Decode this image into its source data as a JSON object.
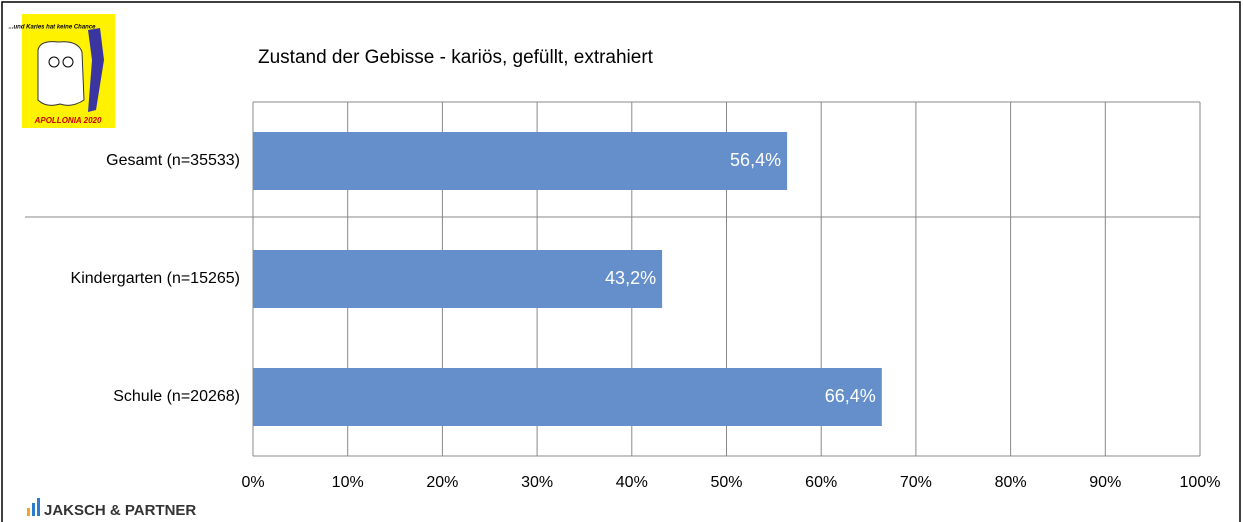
{
  "logo": {
    "text": "...und Karies hat keine Chance",
    "caption": "APOLLONIA 2020"
  },
  "footer": "JAKSCH & PARTNER",
  "chart_data": {
    "type": "bar",
    "orientation": "horizontal",
    "title": "Zustand der Gebisse - kariös, gefüllt, extrahiert",
    "categories": [
      "Gesamt (n=35533)",
      "Kindergarten (n=15265)",
      "Schule (n=20268)"
    ],
    "values": [
      56.4,
      43.2,
      66.4
    ],
    "value_labels": [
      "56,4%",
      "43,2%",
      "66,4%"
    ],
    "color": "#658fcb",
    "xlim": [
      0,
      100
    ],
    "xticks": [
      {
        "value": 0,
        "label": "0%"
      },
      {
        "value": 10,
        "label": "10%"
      },
      {
        "value": 20,
        "label": "20%"
      },
      {
        "value": 30,
        "label": "30%"
      },
      {
        "value": 40,
        "label": "40%"
      },
      {
        "value": 50,
        "label": "50%"
      },
      {
        "value": 60,
        "label": "60%"
      },
      {
        "value": 70,
        "label": "70%"
      },
      {
        "value": 80,
        "label": "80%"
      },
      {
        "value": 90,
        "label": "90%"
      },
      {
        "value": 100,
        "label": "100%"
      }
    ],
    "grid": true
  }
}
